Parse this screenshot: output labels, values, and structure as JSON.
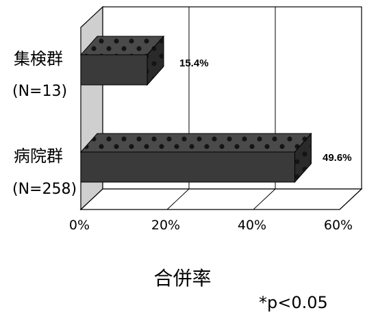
{
  "chart_data": {
    "type": "bar",
    "orientation": "horizontal",
    "style": "3d",
    "categories": [
      {
        "name": "集検群",
        "n_label": "(N=13)"
      },
      {
        "name": "病院群",
        "n_label": "(N=258)"
      }
    ],
    "values": [
      15.4,
      49.6
    ],
    "data_labels": [
      "15.4%",
      "49.6%"
    ],
    "xlim": [
      0,
      60
    ],
    "ticks": [
      "0%",
      "20%",
      "40%",
      "60%"
    ],
    "tick_values": [
      0,
      20,
      40,
      60
    ],
    "xlabel": "合併率",
    "note": "*p<0.05",
    "grid": true,
    "legend": "none",
    "colors": {
      "bar_front": "#3a3a3a",
      "bar_top": "#4a4a4a",
      "bar_side": "#2a2a2a",
      "bar_dots": "#141414",
      "wall_side": "#cfcfcf",
      "line": "#000000"
    }
  }
}
